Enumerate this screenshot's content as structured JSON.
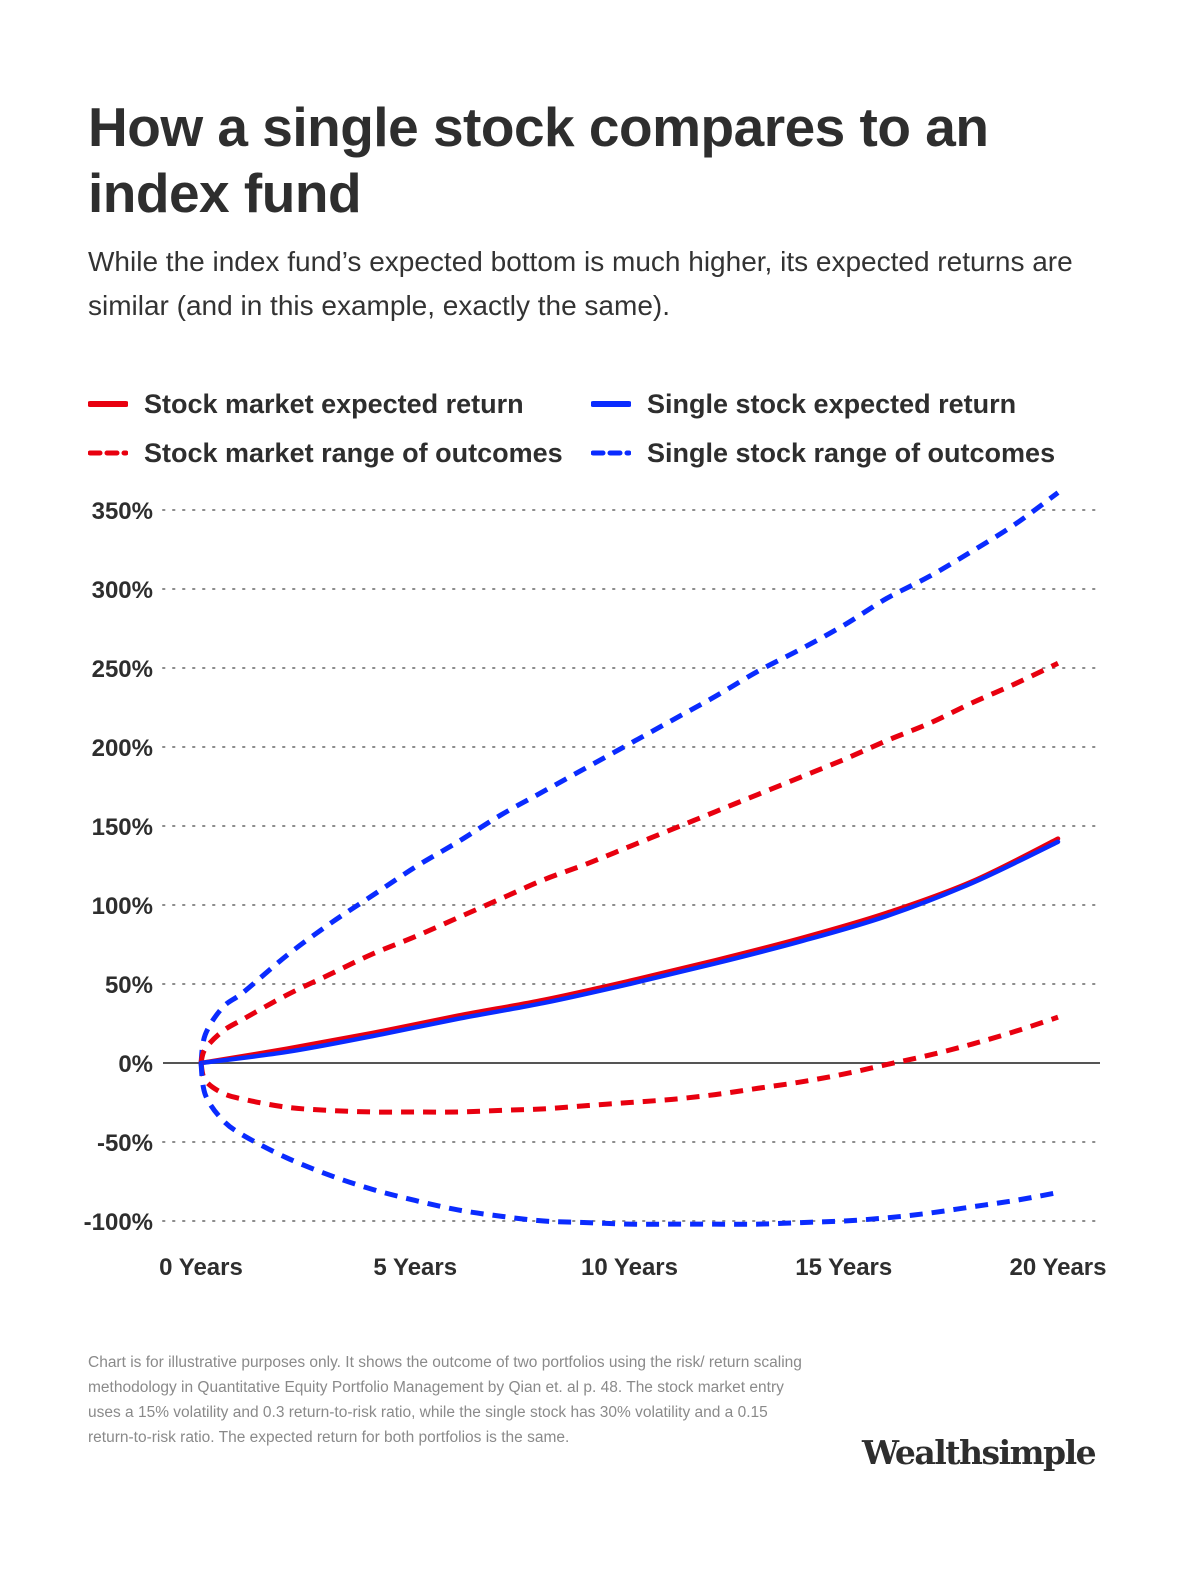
{
  "header": {
    "title": "How a single stock compares to an index fund",
    "subtitle": "While the index fund’s expected bottom is much higher, its expected returns are similar (and in this example, exactly the same)."
  },
  "legend": {
    "items": [
      {
        "label": "Stock market expected return",
        "color": "#e8000f",
        "style": "solid"
      },
      {
        "label": "Single stock expected return",
        "color": "#0a2bff",
        "style": "solid"
      },
      {
        "label": "Stock market range of outcomes",
        "color": "#e8000f",
        "style": "dashed"
      },
      {
        "label": "Single stock range of outcomes",
        "color": "#0a2bff",
        "style": "dashed"
      }
    ]
  },
  "chart_data": {
    "type": "line",
    "title": "How a single stock compares to an index fund",
    "xlabel": "",
    "ylabel": "",
    "xlim": [
      0,
      20
    ],
    "ylim": [
      -100,
      350
    ],
    "x_ticks": [
      0,
      5,
      10,
      15,
      20
    ],
    "x_tick_labels": [
      "0 Years",
      "5 Years",
      "10 Years",
      "15 Years",
      "20 Years"
    ],
    "y_ticks": [
      350,
      300,
      250,
      200,
      150,
      100,
      50,
      0,
      -50,
      -100
    ],
    "y_tick_labels": [
      "350%",
      "300%",
      "250%",
      "200%",
      "150%",
      "100%",
      "50%",
      "0%",
      "-50%",
      "-100%"
    ],
    "grid": "horizontal dotted",
    "series": [
      {
        "name": "Single stock range of outcomes (upper)",
        "color": "#0a2bff",
        "style": "dashed",
        "x": [
          0,
          0.1,
          0.5,
          1,
          2,
          3,
          4,
          5,
          6,
          7,
          8,
          9,
          10,
          11,
          12,
          13,
          14,
          15,
          16,
          17,
          18,
          19,
          20
        ],
        "values": [
          0,
          18,
          35,
          45,
          68,
          88,
          106,
          124,
          140,
          157,
          172,
          187,
          202,
          217,
          232,
          248,
          262,
          277,
          294,
          308,
          324,
          341,
          361
        ]
      },
      {
        "name": "Stock market range of outcomes (upper)",
        "color": "#e8000f",
        "style": "dashed",
        "x": [
          0,
          0.1,
          0.5,
          1,
          2,
          3,
          4,
          5,
          6,
          7,
          8,
          9,
          10,
          11,
          12,
          13,
          14,
          15,
          16,
          17,
          18,
          19,
          20
        ],
        "values": [
          0,
          9,
          20,
          28,
          43,
          56,
          69,
          80,
          92,
          104,
          116,
          126,
          137,
          148,
          159,
          170,
          181,
          192,
          204,
          215,
          228,
          240,
          253
        ]
      },
      {
        "name": "Stock market expected return",
        "color": "#e8000f",
        "style": "solid",
        "x": [
          0,
          2,
          4,
          6,
          8,
          10,
          12,
          14,
          16,
          18,
          20
        ],
        "values": [
          0,
          9,
          19,
          30,
          40,
          52,
          65,
          79,
          95,
          115,
          142
        ]
      },
      {
        "name": "Single stock expected return",
        "color": "#0a2bff",
        "style": "solid",
        "x": [
          0,
          2,
          4,
          6,
          8,
          10,
          12,
          14,
          16,
          18,
          20
        ],
        "values": [
          0,
          7,
          17,
          28,
          38,
          50,
          63,
          77,
          93,
          114,
          140
        ]
      },
      {
        "name": "Stock market range of outcomes (lower)",
        "color": "#e8000f",
        "style": "dashed",
        "x": [
          0,
          0.1,
          0.5,
          1,
          2,
          3,
          4,
          5,
          6,
          7,
          8,
          9,
          10,
          11,
          12,
          13,
          14,
          15,
          16,
          17,
          18,
          19,
          20
        ],
        "values": [
          0,
          -11,
          -19,
          -23,
          -28,
          -30,
          -31,
          -31,
          -31,
          -30,
          -29,
          -27,
          -25,
          -23,
          -20,
          -16,
          -12,
          -7,
          -1,
          5,
          12,
          20,
          29
        ]
      },
      {
        "name": "Single stock range of outcomes (lower)",
        "color": "#0a2bff",
        "style": "dashed",
        "x": [
          0,
          0.1,
          0.5,
          1,
          2,
          3,
          4,
          5,
          6,
          7,
          8,
          9,
          10,
          11,
          12,
          13,
          14,
          15,
          16,
          17,
          18,
          19,
          20
        ],
        "values": [
          0,
          -20,
          -36,
          -46,
          -60,
          -71,
          -80,
          -87,
          -93,
          -97,
          -100,
          -101,
          -102,
          -102,
          -102,
          -102,
          -101,
          -100,
          -98,
          -95,
          -91,
          -87,
          -82
        ]
      }
    ]
  },
  "footnote": "Chart is for illustrative purposes only. It shows the outcome of two portfolios using the risk/ return scaling methodology in Quantitative Equity Portfolio Management by Qian et. al p. 48. The stock market entry uses a 15% volatility and 0.3 return-to-risk ratio, while the single stock has 30% volatility and a 0.15 return-to-risk ratio. The expected return for both portfolios is the same.",
  "brand": {
    "logo_text": "Wealthsimple"
  }
}
